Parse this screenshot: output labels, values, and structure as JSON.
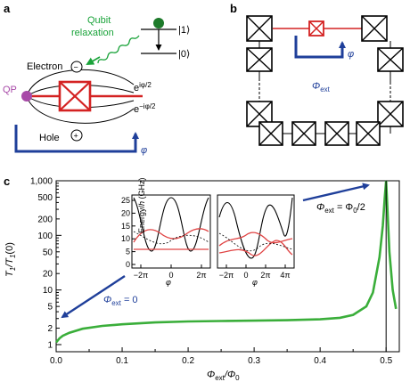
{
  "panels": {
    "a": {
      "label": "a",
      "qubit_relaxation": [
        "Qubit",
        "relaxation"
      ],
      "ket1": "|1⟩",
      "ket0": "|0⟩",
      "electron": "Electron",
      "hole": "Hole",
      "qp": "QP",
      "minus": "−",
      "plus": "+",
      "phase_plus": "e",
      "phase_plus_sup": "iφ/2",
      "phase_minus": "e",
      "phase_minus_sup": "−iφ/2",
      "phi": "φ"
    },
    "b": {
      "label": "b",
      "phi": "φ",
      "phi_ext": "Φ",
      "phi_ext_sub": "ext"
    },
    "c": {
      "label": "c",
      "ann_left": "Φ",
      "ann_left_sub": "ext",
      "ann_left_rest": " = 0",
      "ann_right": "Φ",
      "ann_right_sub": "ext",
      "ann_right_rest": " = Φ",
      "ann_right_sub2": "0",
      "ann_right_tail": "/2"
    }
  },
  "chart_data": [
    {
      "type": "line",
      "title": "",
      "xlabel": "Φext/Φ0",
      "ylabel": "T1/T1(0)",
      "xlim": [
        0.0,
        0.52
      ],
      "ylim": [
        1,
        1000
      ],
      "yscale": "log",
      "xticks": [
        "0.0",
        "0.1",
        "0.2",
        "0.3",
        "0.4",
        "0.5"
      ],
      "yticks": [
        "1",
        "2",
        "5",
        "10",
        "20",
        "50",
        "100",
        "200",
        "500",
        "1,000"
      ],
      "x": [
        0.0,
        0.005,
        0.01,
        0.02,
        0.04,
        0.07,
        0.1,
        0.15,
        0.2,
        0.25,
        0.3,
        0.35,
        0.4,
        0.43,
        0.45,
        0.47,
        0.48,
        0.49,
        0.495,
        0.498,
        0.5,
        0.502,
        0.505,
        0.51,
        0.515
      ],
      "y": [
        1.1,
        1.3,
        1.45,
        1.65,
        1.95,
        2.2,
        2.35,
        2.55,
        2.65,
        2.7,
        2.75,
        2.8,
        2.9,
        3.1,
        3.5,
        5.0,
        9.0,
        40,
        150,
        500,
        1000,
        300,
        50,
        10,
        4.5
      ],
      "series": [
        {
          "color": "#3aae3a"
        }
      ]
    },
    {
      "type": "line",
      "title": "",
      "xlabel": "φ",
      "ylabel": "Energy/h (GHz)",
      "ylim": [
        0,
        25
      ],
      "xticks": [
        "−2π",
        "0",
        "2π"
      ],
      "yticks": [
        "0",
        "5",
        "10",
        "15",
        "20",
        "25"
      ]
    },
    {
      "type": "line",
      "title": "",
      "xlabel": "φ",
      "ylabel": "",
      "ylim": [
        0,
        25
      ],
      "xticks": [
        "−2π",
        "0",
        "2π",
        "4π"
      ],
      "yticks": []
    }
  ]
}
